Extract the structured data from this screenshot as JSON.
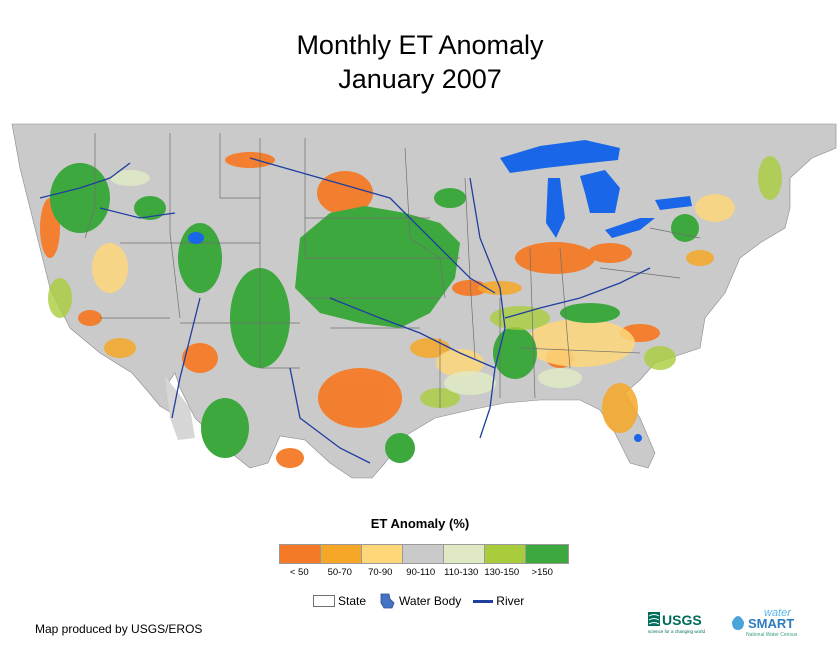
{
  "title_line1": "Monthly ET Anomaly",
  "title_line2": "January 2007",
  "legend": {
    "title": "ET Anomaly (%)",
    "classes": [
      {
        "label": "< 50",
        "color": "#f57a27"
      },
      {
        "label": "50-70",
        "color": "#f6a727"
      },
      {
        "label": "70-90",
        "color": "#fed77a"
      },
      {
        "label": "90-110",
        "color": "#cacaca"
      },
      {
        "label": "110-130",
        "color": "#dfeac4"
      },
      {
        "label": "130-150",
        "color": "#a9cc3c"
      },
      {
        "label": ">150",
        "color": "#3da83d"
      }
    ]
  },
  "reference_legend": {
    "state_label": "State",
    "water_body_label": "Water Body",
    "river_label": "River"
  },
  "credit": "Map produced by USGS/EROS",
  "logos": {
    "usgs": "USGS",
    "usgs_tagline": "science for a changing world",
    "water": "water",
    "smart": "SMART",
    "nwc": "National Water Census"
  },
  "colors": {
    "land": "#cacaca",
    "water": "#1966e8",
    "river": "#1f3f9f",
    "border": "#6f6f6f"
  }
}
